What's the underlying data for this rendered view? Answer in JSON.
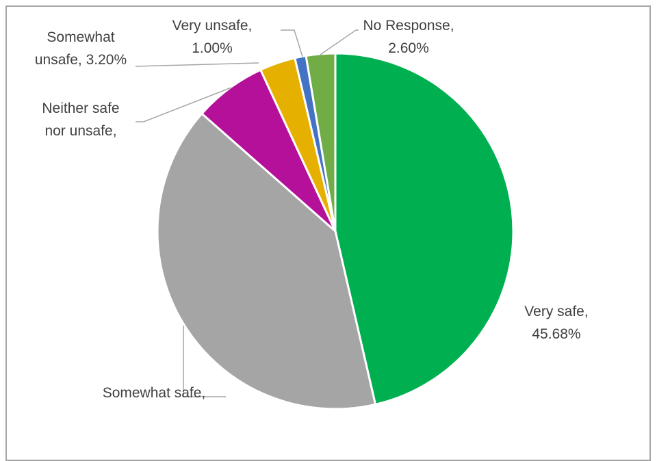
{
  "chart_data": {
    "type": "pie",
    "title": "",
    "slices": [
      {
        "name": "Very safe",
        "value": 45.68,
        "color": "#00b050",
        "label_lines": [
          "Very safe,",
          "45.68%"
        ]
      },
      {
        "name": "Somewhat safe",
        "value": 39.5,
        "color": "#a5a5a5",
        "label_lines": [
          "Somewhat safe,"
        ]
      },
      {
        "name": "Neither safe nor unsafe",
        "value": 6.5,
        "color": "#b5109a",
        "label_lines": [
          "Neither safe",
          "nor unsafe,"
        ]
      },
      {
        "name": "Somewhat unsafe",
        "value": 3.2,
        "color": "#e6b000",
        "label_lines": [
          "Somewhat",
          "unsafe, 3.20%"
        ]
      },
      {
        "name": "Very unsafe",
        "value": 1.0,
        "color": "#4472c4",
        "label_lines": [
          "Very unsafe,",
          "1.00%"
        ]
      },
      {
        "name": "No Response",
        "value": 2.6,
        "color": "#70ad47",
        "label_lines": [
          "No Response,",
          "2.60%"
        ]
      }
    ],
    "legend": "none",
    "leader_color": "#a6a6a6"
  }
}
